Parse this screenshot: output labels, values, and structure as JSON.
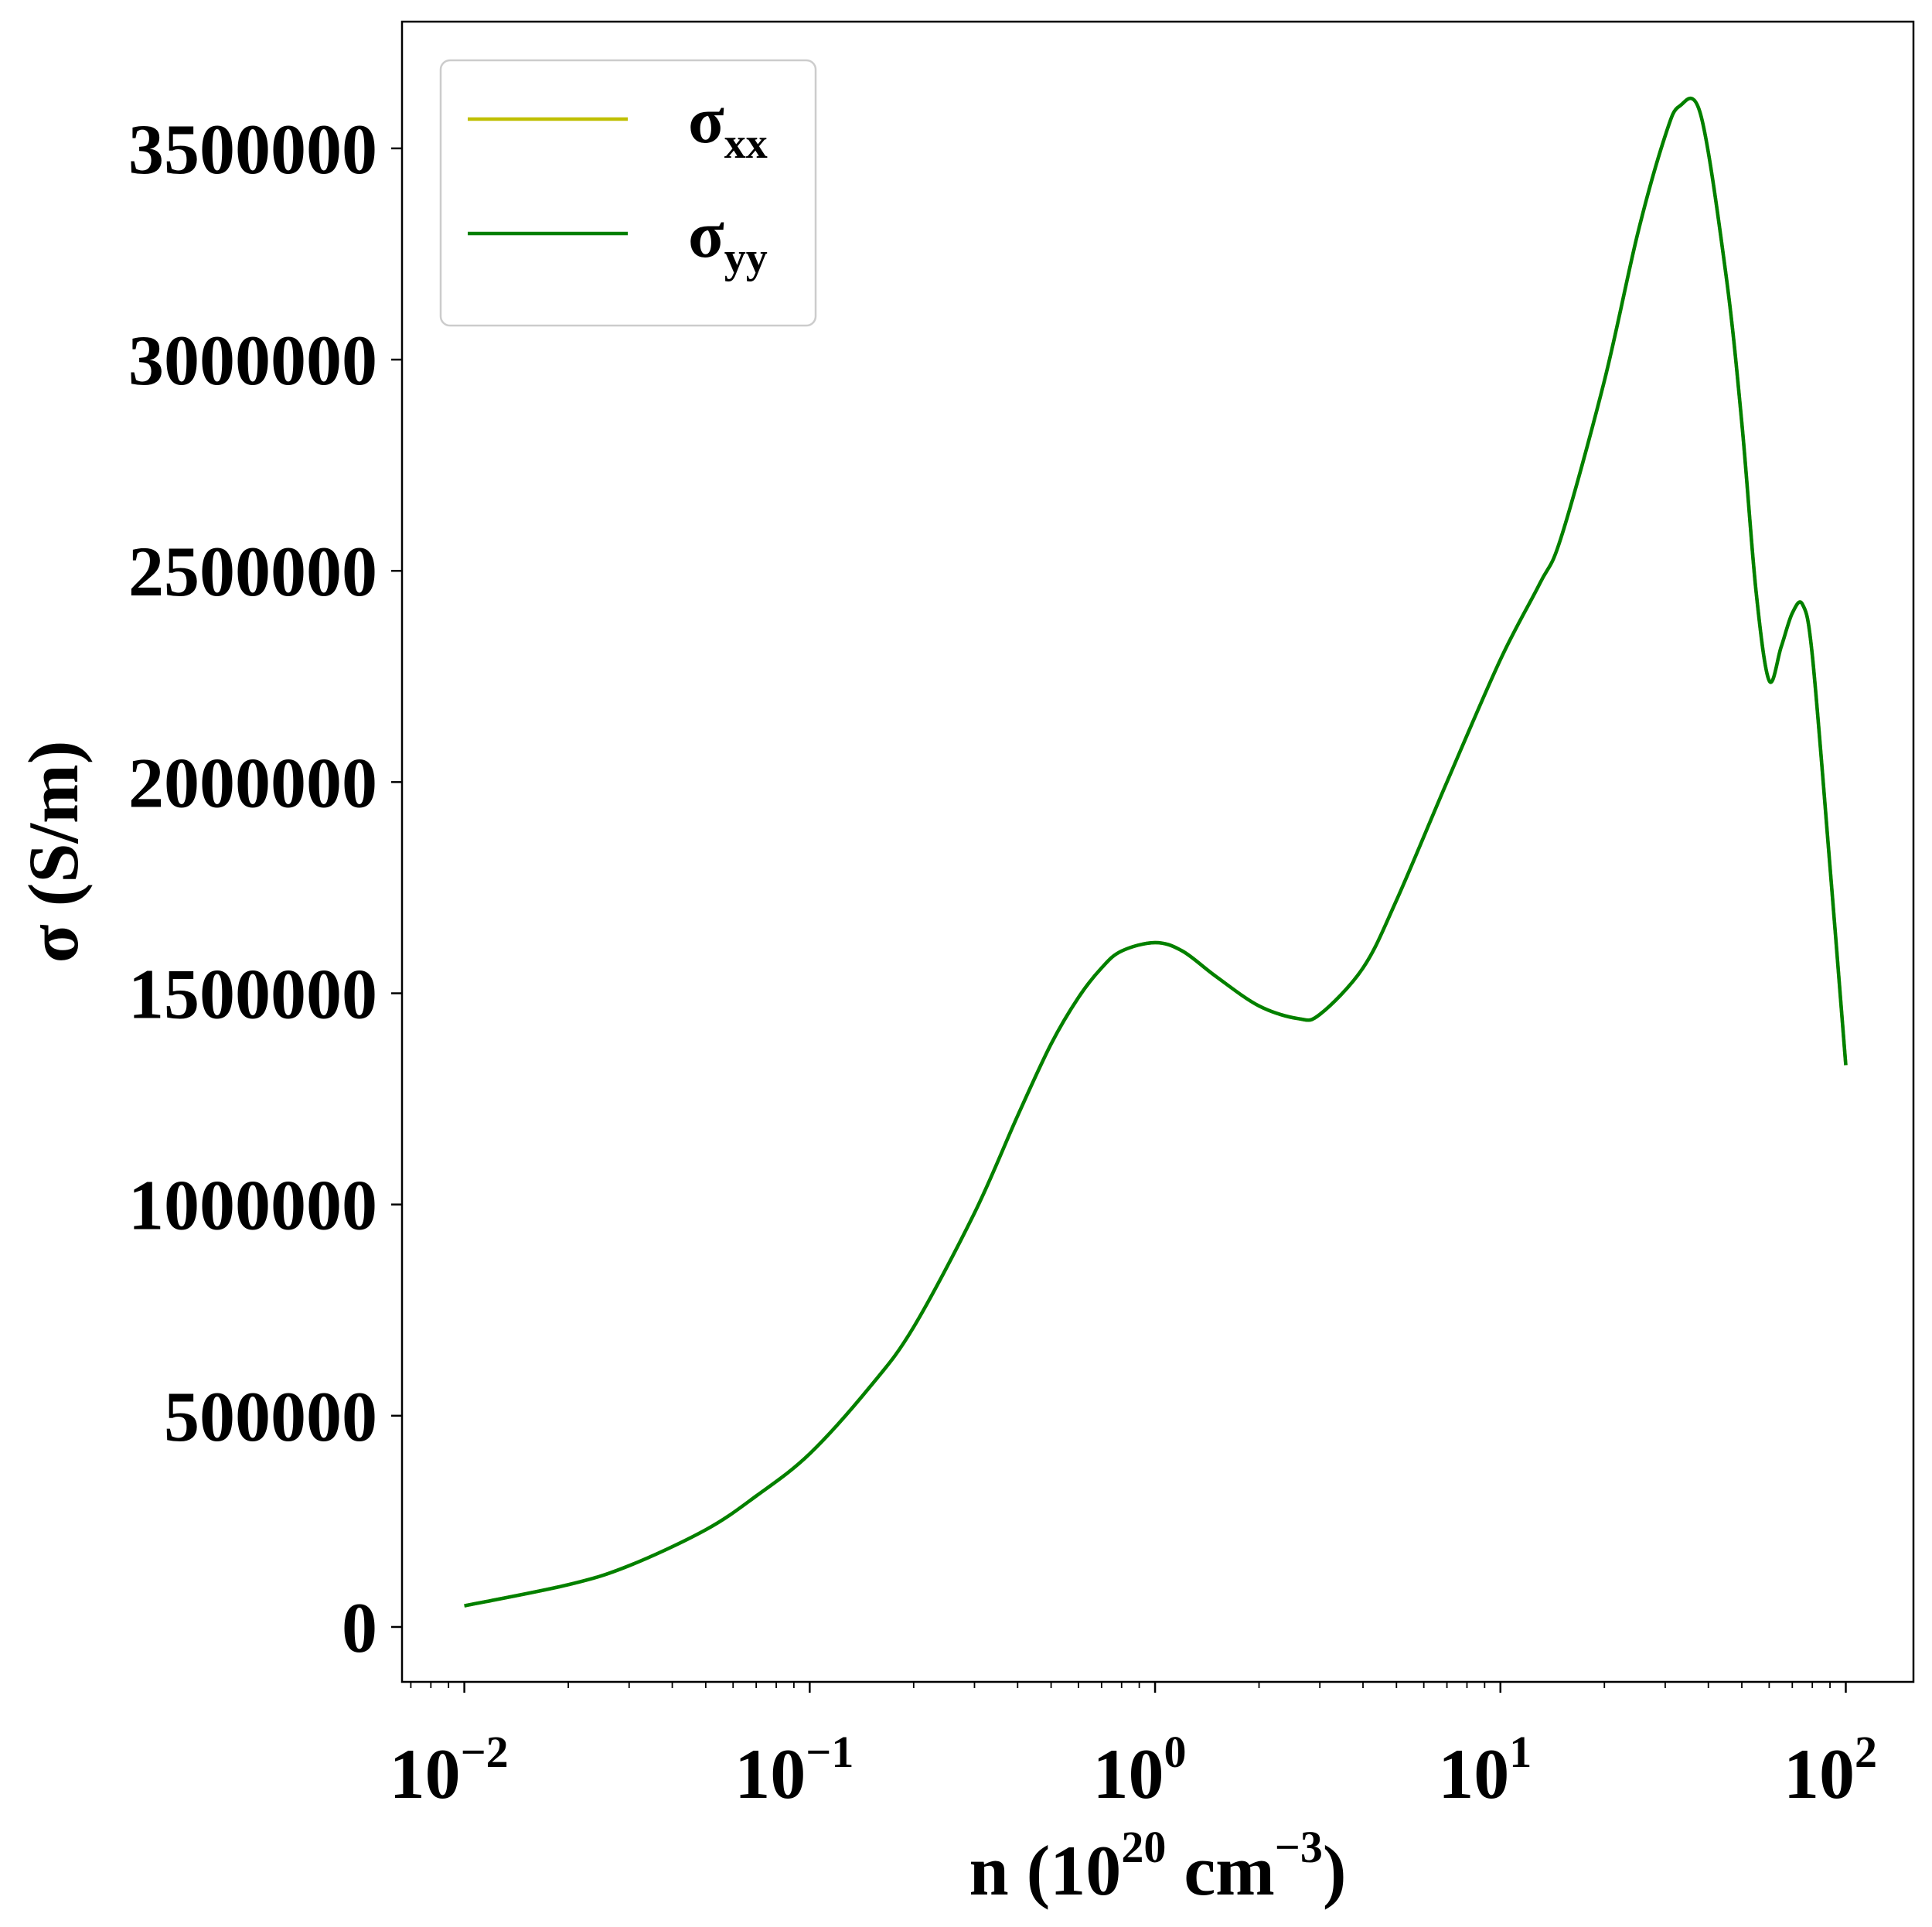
{
  "chart_data": {
    "type": "line",
    "title": "",
    "xlabel": {
      "base": "n (10",
      "sup1": "20",
      "mid": " cm",
      "sup2": "−3",
      "end": ")"
    },
    "ylabel": "σ (S/m)",
    "x_scale": "log",
    "xlim": [
      0.0066,
      157
    ],
    "ylim": [
      -130000,
      3800000
    ],
    "grid": false,
    "legend_position": "top-left",
    "x_ticks": [
      {
        "value": 0.01,
        "base": "10",
        "exp": "−2"
      },
      {
        "value": 0.1,
        "base": "10",
        "exp": "−1"
      },
      {
        "value": 1,
        "base": "10",
        "exp": "0"
      },
      {
        "value": 10,
        "base": "10",
        "exp": "1"
      },
      {
        "value": 100,
        "base": "10",
        "exp": "2"
      }
    ],
    "y_ticks": [
      {
        "value": 0,
        "label": "0"
      },
      {
        "value": 500000,
        "label": "500000"
      },
      {
        "value": 1000000,
        "label": "1000000"
      },
      {
        "value": 1500000,
        "label": "1500000"
      },
      {
        "value": 2000000,
        "label": "2000000"
      },
      {
        "value": 2500000,
        "label": "2500000"
      },
      {
        "value": 3000000,
        "label": "3000000"
      },
      {
        "value": 3500000,
        "label": "3500000"
      }
    ],
    "series": [
      {
        "name": {
          "main": "σ",
          "sub": "xx"
        },
        "color": "#bfbf00",
        "x": [
          0.01,
          0.02,
          0.03,
          0.05,
          0.07,
          0.1,
          0.15,
          0.2,
          0.3,
          0.4,
          0.5,
          0.6,
          0.7,
          0.8,
          1.0,
          1.2,
          1.5,
          2.0,
          2.6,
          3.0,
          4.0,
          5.0,
          7.0,
          10,
          13,
          15,
          20,
          25,
          30,
          33,
          38,
          45,
          50,
          55,
          60,
          65,
          70,
          75,
          80,
          90,
          100
        ],
        "y": [
          50000,
          100000,
          145000,
          230000,
          310000,
          410000,
          570000,
          710000,
          980000,
          1210000,
          1380000,
          1490000,
          1560000,
          1600000,
          1620000,
          1600000,
          1540000,
          1470000,
          1440000,
          1450000,
          1560000,
          1720000,
          2000000,
          2290000,
          2470000,
          2580000,
          2950000,
          3300000,
          3530000,
          3600000,
          3580000,
          3200000,
          2850000,
          2450000,
          2240000,
          2320000,
          2400000,
          2420000,
          2300000,
          1800000,
          1330000
        ]
      },
      {
        "name": {
          "main": "σ",
          "sub": "yy"
        },
        "color": "#008000",
        "x": [
          0.01,
          0.02,
          0.03,
          0.05,
          0.07,
          0.1,
          0.15,
          0.2,
          0.3,
          0.4,
          0.5,
          0.6,
          0.7,
          0.8,
          1.0,
          1.2,
          1.5,
          2.0,
          2.6,
          3.0,
          4.0,
          5.0,
          7.0,
          10,
          13,
          15,
          20,
          25,
          30,
          33,
          38,
          45,
          50,
          55,
          60,
          65,
          70,
          75,
          80,
          90,
          100
        ],
        "y": [
          50000,
          100000,
          145000,
          230000,
          310000,
          410000,
          570000,
          710000,
          980000,
          1210000,
          1380000,
          1490000,
          1560000,
          1600000,
          1620000,
          1600000,
          1540000,
          1470000,
          1440000,
          1450000,
          1560000,
          1720000,
          2000000,
          2290000,
          2470000,
          2580000,
          2950000,
          3300000,
          3530000,
          3600000,
          3580000,
          3200000,
          2850000,
          2450000,
          2240000,
          2320000,
          2400000,
          2420000,
          2300000,
          1800000,
          1330000
        ]
      }
    ]
  }
}
